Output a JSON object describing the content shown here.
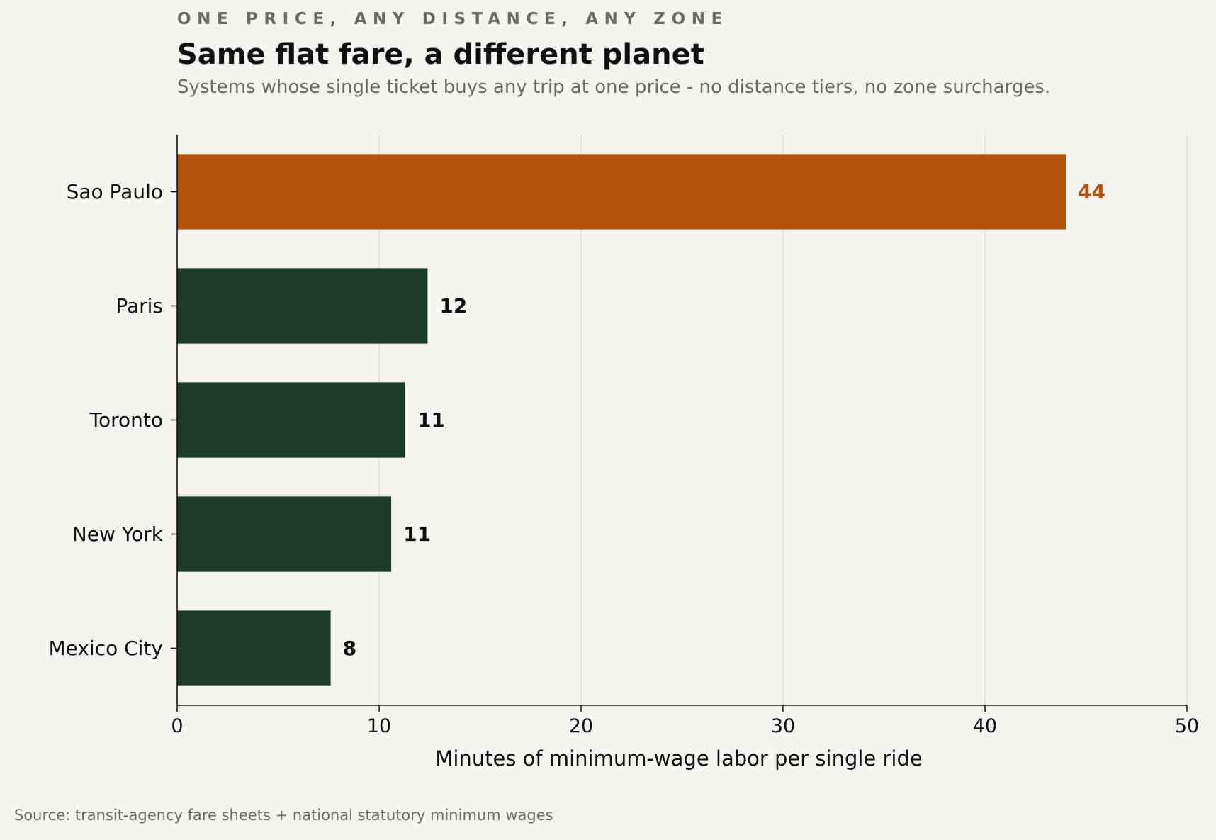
{
  "header": {
    "kicker": "ONE PRICE, ANY DISTANCE, ANY ZONE",
    "title": "Same flat fare, a different planet",
    "subtitle": "Systems whose single ticket buys any trip at one price - no distance tiers, no zone surcharges."
  },
  "footer": {
    "source": "Source: transit-agency fare sheets + national statutory minimum wages"
  },
  "chart_data": {
    "type": "bar",
    "orientation": "horizontal",
    "categories": [
      "Sao Paulo",
      "Paris",
      "Toronto",
      "New York",
      "Mexico City"
    ],
    "values": [
      44.0,
      12.4,
      11.3,
      10.6,
      7.6
    ],
    "value_labels": [
      "44",
      "12",
      "11",
      "11",
      "8"
    ],
    "highlight": "Sao Paulo",
    "xlabel": "Minutes of minimum-wage labor per single ride",
    "ylabel": "",
    "xlim": [
      0,
      50
    ],
    "xticks": [
      0,
      10,
      20,
      30,
      40,
      50
    ],
    "grid": "vertical",
    "colors": {
      "highlight": "#b3530a",
      "default": "#1c3b2a",
      "grid": "#dddcd6",
      "axis": "#111111"
    }
  }
}
